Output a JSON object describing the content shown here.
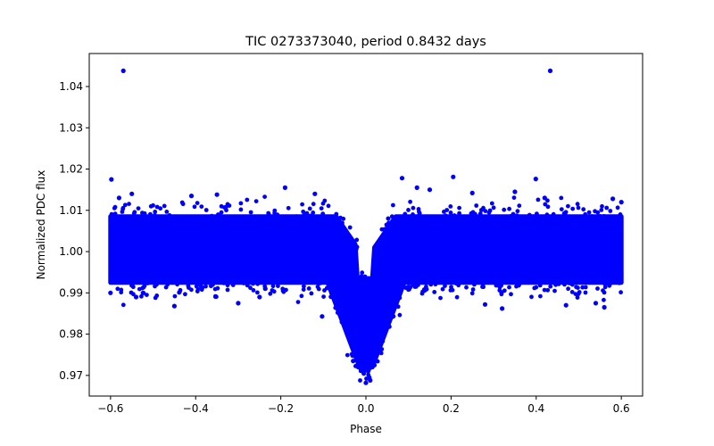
{
  "chart_data": {
    "type": "scatter",
    "title": "TIC 0273373040, period 0.8432 days",
    "xlabel": "Phase",
    "ylabel": "Normalized PDC flux",
    "xlim": [
      -0.65,
      0.65
    ],
    "ylim": [
      0.965,
      1.048
    ],
    "xticks": [
      -0.6,
      -0.4,
      -0.2,
      0.0,
      0.2,
      0.4,
      0.6
    ],
    "xtick_labels": [
      "−0.6",
      "−0.4",
      "−0.2",
      "0.0",
      "0.2",
      "0.4",
      "0.6"
    ],
    "yticks": [
      0.97,
      0.98,
      0.99,
      1.0,
      1.01,
      1.02,
      1.03,
      1.04
    ],
    "ytick_labels": [
      "0.97",
      "0.98",
      "0.99",
      "1.00",
      "1.01",
      "1.02",
      "1.03",
      "1.04"
    ],
    "grid": false,
    "marker_color": "#0000ff",
    "series": [
      {
        "name": "PDC flux",
        "x": [
          -0.57,
          0.433,
          -0.598,
          -0.103,
          0.085,
          0.205,
          0.399,
          -0.55,
          -0.41,
          0.12,
          0.32,
          0.56,
          -0.3,
          -0.03,
          0.0,
          0.01,
          -0.005,
          0.02,
          -0.02,
          0.005,
          0.008,
          -0.012,
          0.015,
          -0.05,
          0.05,
          -0.45,
          -0.25,
          0.28,
          0.47,
          -0.58,
          0.58,
          -0.12,
          0.15,
          0.35,
          -0.35,
          0.54,
          -0.54,
          0.25,
          -0.19,
          0.42,
          0.6,
          -0.6
        ],
        "y": [
          1.0438,
          1.0438,
          1.0175,
          0.9843,
          1.0178,
          1.0181,
          1.0176,
          1.014,
          1.0135,
          1.0155,
          0.9862,
          0.9865,
          0.9875,
          0.9735,
          0.9682,
          0.9688,
          0.9705,
          0.9725,
          0.9742,
          0.971,
          0.9695,
          0.9715,
          0.9732,
          0.9905,
          0.9915,
          0.9868,
          0.989,
          0.9872,
          0.987,
          1.013,
          1.0128,
          1.014,
          1.015,
          1.0145,
          1.0138,
          0.9875,
          0.989,
          1.0142,
          1.0155,
          1.013,
          1.012,
          0.99
        ]
      }
    ]
  }
}
